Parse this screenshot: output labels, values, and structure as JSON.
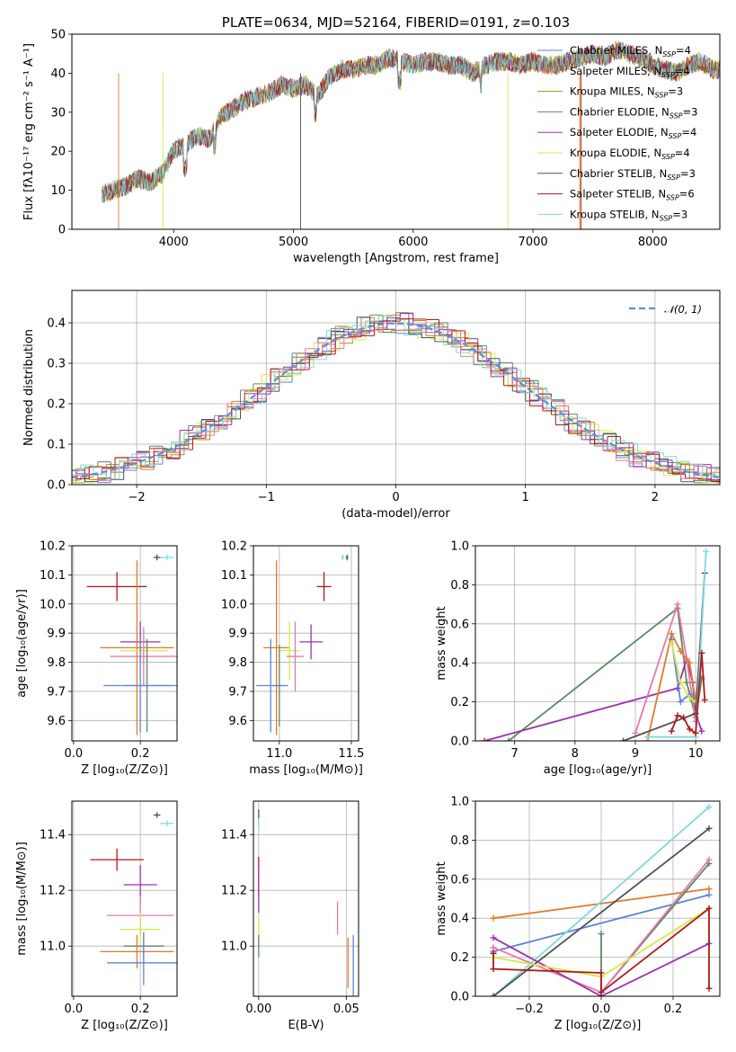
{
  "colors": {
    "cm": "#5b84d8",
    "sm": "#e07a2a",
    "km": "#b08a1a",
    "ce": "#5a8a60",
    "se": "#9b30b0",
    "ke": "#d4e84a",
    "cs": "#505050",
    "ss": "#b01818",
    "ks": "#7fd8e0",
    "pink": "#e878a8",
    "dash": "#5b8fd8"
  },
  "chart_data": [
    {
      "type": "line",
      "id": "spectrum",
      "title": "PLATE=0634, MJD=52164, FIBERID=0191, z=0.103",
      "xlabel": "wavelength [Angstrom, rest frame]",
      "ylabel": "Flux [fλ10⁻¹⁷ erg cm⁻² s⁻¹ A⁻¹]",
      "xlim": [
        3150,
        8560
      ],
      "ylim": [
        0,
        50
      ],
      "xticks": [
        "4000",
        "5000",
        "6000",
        "7000",
        "8000"
      ],
      "yticks": [
        "0",
        "10",
        "20",
        "30",
        "40",
        "50"
      ],
      "legend_position": "upper right",
      "legend": [
        {
          "label": "Chabrier MILES, N",
          "sub": "SSP",
          "suffix": "=4",
          "color": "#5b84d8"
        },
        {
          "label": "Salpeter MILES, N",
          "sub": "SSP",
          "suffix": "=4",
          "color": "#e07a2a"
        },
        {
          "label": "Kroupa MILES, N",
          "sub": "SSP",
          "suffix": "=3",
          "color": "#b08a1a"
        },
        {
          "label": "Chabrier ELODIE, N",
          "sub": "SSP",
          "suffix": "=3",
          "color": "#5a8a60"
        },
        {
          "label": "Salpeter ELODIE, N",
          "sub": "SSP",
          "suffix": "=4",
          "color": "#9b30b0"
        },
        {
          "label": "Kroupa ELODIE, N",
          "sub": "SSP",
          "suffix": "=4",
          "color": "#d4e84a"
        },
        {
          "label": "Chabrier STELIB, N",
          "sub": "SSP",
          "suffix": "=3",
          "color": "#505050"
        },
        {
          "label": "Salpeter STELIB, N",
          "sub": "SSP",
          "suffix": "=6",
          "color": "#b01818"
        },
        {
          "label": "Kroupa STELIB, N",
          "sub": "SSP",
          "suffix": "=3",
          "color": "#7fd8e0"
        }
      ],
      "continuum": [
        [
          3400,
          9
        ],
        [
          3500,
          10
        ],
        [
          3600,
          11
        ],
        [
          3700,
          13
        ],
        [
          3800,
          12
        ],
        [
          3900,
          14
        ],
        [
          3950,
          17
        ],
        [
          4000,
          20
        ],
        [
          4100,
          22
        ],
        [
          4200,
          24
        ],
        [
          4300,
          23
        ],
        [
          4400,
          29
        ],
        [
          4500,
          31
        ],
        [
          4600,
          33
        ],
        [
          4700,
          34
        ],
        [
          4800,
          35
        ],
        [
          4900,
          37
        ],
        [
          5000,
          36
        ],
        [
          5100,
          37
        ],
        [
          5200,
          34
        ],
        [
          5300,
          39
        ],
        [
          5400,
          41
        ],
        [
          5500,
          41
        ],
        [
          5600,
          42
        ],
        [
          5700,
          42
        ],
        [
          5800,
          44
        ],
        [
          5900,
          43
        ],
        [
          6000,
          42
        ],
        [
          6100,
          43
        ],
        [
          6200,
          43
        ],
        [
          6300,
          42
        ],
        [
          6400,
          42
        ],
        [
          6500,
          40
        ],
        [
          6600,
          42
        ],
        [
          6700,
          43
        ],
        [
          6800,
          43
        ],
        [
          6900,
          42
        ],
        [
          7000,
          43
        ],
        [
          7100,
          42
        ],
        [
          7200,
          42
        ],
        [
          7300,
          43
        ],
        [
          7400,
          44
        ],
        [
          7500,
          45
        ],
        [
          7600,
          44
        ],
        [
          7700,
          46
        ],
        [
          7800,
          45
        ],
        [
          7900,
          44
        ],
        [
          8000,
          42
        ],
        [
          8100,
          41
        ],
        [
          8200,
          40
        ],
        [
          8300,
          42
        ],
        [
          8400,
          43
        ],
        [
          8500,
          41
        ]
      ]
    },
    {
      "type": "line",
      "id": "residuals",
      "xlabel": "(data-model)/error",
      "ylabel": "Normed distribution",
      "xlim": [
        -2.5,
        2.5
      ],
      "ylim": [
        0,
        0.48
      ],
      "xticks": [
        "−2",
        "−1",
        "0",
        "1",
        "2"
      ],
      "yticks": [
        "0.0",
        "0.1",
        "0.2",
        "0.3",
        "0.4"
      ],
      "grid": true,
      "legend": [
        {
          "label": "𝒩(0, 1)",
          "color": "#5b8fd8",
          "style": "dashed"
        }
      ],
      "legend_position": "upper right",
      "series_colors": [
        "#5b84d8",
        "#e07a2a",
        "#b08a1a",
        "#5a8a60",
        "#9b30b0",
        "#d4e84a",
        "#505050",
        "#b01818",
        "#7fd8e0",
        "#e878a8"
      ]
    },
    {
      "type": "scatter",
      "id": "age-vs-z",
      "xlabel": "Z [log₁₀(Z/Z⊙)]",
      "ylabel": "age  [log₁₀(age/yr)]",
      "xlim": [
        -0.005,
        0.31
      ],
      "ylim": [
        9.53,
        10.2
      ],
      "xticks": [
        "0.0",
        "0.2"
      ],
      "yticks": [
        "9.6",
        "9.7",
        "9.8",
        "9.9",
        "10.0",
        "10.1",
        "10.2"
      ],
      "points": [
        {
          "x": 0.13,
          "y": 10.06,
          "xerr": 0.09,
          "yerr": 0.05,
          "color": "#b01818"
        },
        {
          "x": 0.25,
          "y": 10.16,
          "xerr": 0.01,
          "yerr": 0.01,
          "color": "#505050"
        },
        {
          "x": 0.28,
          "y": 10.16,
          "xerr": 0.02,
          "yerr": 0.01,
          "color": "#7fd8e0"
        },
        {
          "x": 0.2,
          "y": 9.87,
          "xerr": 0.06,
          "yerr": 0.07,
          "color": "#9b30b0"
        },
        {
          "x": 0.19,
          "y": 9.85,
          "xerr": 0.11,
          "yerr": 0.3,
          "color": "#e07a2a"
        },
        {
          "x": 0.21,
          "y": 9.84,
          "xerr": 0.07,
          "yerr": 0.05,
          "color": "#d4e84a"
        },
        {
          "x": 0.21,
          "y": 9.82,
          "xerr": 0.1,
          "yerr": 0.1,
          "color": "#e878a8"
        },
        {
          "x": 0.22,
          "y": 9.72,
          "xerr": 0.07,
          "yerr": 0.16,
          "color": "#5a8a60"
        },
        {
          "x": 0.2,
          "y": 9.72,
          "xerr": 0.11,
          "yerr": 0.16,
          "color": "#5b84d8"
        }
      ]
    },
    {
      "type": "scatter",
      "id": "age-vs-mass",
      "xlabel": "mass [log₁₀(M/M⊙)]",
      "xlim": [
        10.82,
        11.55
      ],
      "ylim": [
        9.53,
        10.2
      ],
      "xticks": [
        "11.0",
        "11.5"
      ],
      "yticks": [
        "9.6",
        "9.7",
        "9.8",
        "9.9",
        "10.0",
        "10.1",
        "10.2"
      ],
      "points": [
        {
          "x": 11.31,
          "y": 10.06,
          "xerr": 0.05,
          "yerr": 0.05,
          "color": "#b01818"
        },
        {
          "x": 11.47,
          "y": 10.16,
          "xerr": 0.01,
          "yerr": 0.01,
          "color": "#505050"
        },
        {
          "x": 11.44,
          "y": 10.16,
          "xerr": 0.01,
          "yerr": 0.01,
          "color": "#7fd8e0"
        },
        {
          "x": 11.22,
          "y": 9.87,
          "xerr": 0.08,
          "yerr": 0.06,
          "color": "#9b30b0"
        },
        {
          "x": 10.98,
          "y": 9.85,
          "xerr": 0.09,
          "yerr": 0.3,
          "color": "#e07a2a"
        },
        {
          "x": 11.07,
          "y": 9.84,
          "xerr": 0.07,
          "yerr": 0.1,
          "color": "#d4e84a"
        },
        {
          "x": 11.11,
          "y": 9.82,
          "xerr": 0.06,
          "yerr": 0.12,
          "color": "#e878a8"
        },
        {
          "x": 11.0,
          "y": 9.72,
          "xerr": 0.06,
          "yerr": 0.14,
          "color": "#5a8a60"
        },
        {
          "x": 10.94,
          "y": 9.72,
          "xerr": 0.1,
          "yerr": 0.16,
          "color": "#5b84d8"
        }
      ]
    },
    {
      "type": "line",
      "id": "massweight-vs-age",
      "xlabel": "age  [log₁₀(age/yr)]",
      "ylabel": "mass weight",
      "xlim": [
        6.35,
        10.4
      ],
      "ylim": [
        0,
        1
      ],
      "xticks": [
        "7",
        "8",
        "9",
        "10"
      ],
      "yticks": [
        "0.0",
        "0.2",
        "0.4",
        "0.6",
        "0.8",
        "1.0"
      ],
      "grid": true,
      "series": [
        {
          "color": "#5a8a60",
          "points": [
            [
              6.9,
              0
            ],
            [
              9.7,
              0.68
            ],
            [
              9.85,
              0.3
            ],
            [
              10.0,
              0.12
            ],
            [
              10.1,
              0.32
            ]
          ]
        },
        {
          "color": "#9b30b0",
          "points": [
            [
              6.5,
              0
            ],
            [
              9.7,
              0.27
            ],
            [
              9.85,
              0.42
            ],
            [
              9.95,
              0.3
            ],
            [
              10.0,
              0.14
            ],
            [
              10.1,
              0.05
            ]
          ]
        },
        {
          "color": "#e878a8",
          "points": [
            [
              9.0,
              0.04
            ],
            [
              9.7,
              0.7
            ],
            [
              9.85,
              0.42
            ],
            [
              10.0,
              0.1
            ]
          ]
        },
        {
          "color": "#e07a2a",
          "points": [
            [
              9.2,
              0
            ],
            [
              9.6,
              0.55
            ],
            [
              9.75,
              0.46
            ],
            [
              9.9,
              0.4
            ],
            [
              10.0,
              0.2
            ]
          ]
        },
        {
          "color": "#5b84d8",
          "points": [
            [
              9.6,
              0.52
            ],
            [
              9.75,
              0.2
            ],
            [
              9.9,
              0.24
            ],
            [
              10.0,
              0.2
            ]
          ]
        },
        {
          "color": "#d4e84a",
          "points": [
            [
              9.6,
              0.5
            ],
            [
              9.75,
              0.3
            ],
            [
              9.9,
              0.22
            ],
            [
              10.0,
              0.2
            ]
          ]
        },
        {
          "color": "#505050",
          "points": [
            [
              8.8,
              0
            ],
            [
              10.0,
              0.14
            ],
            [
              10.15,
              0.86
            ]
          ]
        },
        {
          "color": "#7fd8e0",
          "points": [
            [
              9.2,
              0.02
            ],
            [
              10.0,
              0.02
            ],
            [
              10.17,
              0.97
            ]
          ]
        },
        {
          "color": "#b01818",
          "points": [
            [
              9.6,
              0.05
            ],
            [
              9.7,
              0.13
            ],
            [
              9.8,
              0.12
            ],
            [
              9.9,
              0.06
            ],
            [
              10.0,
              0.04
            ],
            [
              10.1,
              0.45
            ],
            [
              10.15,
              0.21
            ]
          ]
        }
      ]
    },
    {
      "type": "scatter",
      "id": "mass-vs-z",
      "xlabel": "Z [log₁₀(Z/Z⊙)]",
      "ylabel": "mass [log₁₀(M/M⊙)]",
      "xlim": [
        -0.005,
        0.31
      ],
      "ylim": [
        10.82,
        11.52
      ],
      "xticks": [
        "0.0",
        "0.2"
      ],
      "yticks": [
        "11.0",
        "11.2",
        "11.4"
      ],
      "points": [
        {
          "x": 0.13,
          "y": 11.31,
          "xerr": 0.08,
          "yerr": 0.04,
          "color": "#b01818"
        },
        {
          "x": 0.25,
          "y": 11.47,
          "xerr": 0.01,
          "yerr": 0.01,
          "color": "#505050"
        },
        {
          "x": 0.28,
          "y": 11.44,
          "xerr": 0.02,
          "yerr": 0.01,
          "color": "#7fd8e0"
        },
        {
          "x": 0.2,
          "y": 11.22,
          "xerr": 0.05,
          "yerr": 0.07,
          "color": "#9b30b0"
        },
        {
          "x": 0.2,
          "y": 11.11,
          "xerr": 0.1,
          "yerr": 0.07,
          "color": "#e878a8"
        },
        {
          "x": 0.2,
          "y": 11.06,
          "xerr": 0.06,
          "yerr": 0.06,
          "color": "#d4e84a"
        },
        {
          "x": 0.21,
          "y": 11.0,
          "xerr": 0.06,
          "yerr": 0.05,
          "color": "#5a8a60"
        },
        {
          "x": 0.19,
          "y": 10.98,
          "xerr": 0.11,
          "yerr": 0.06,
          "color": "#e07a2a"
        },
        {
          "x": 0.21,
          "y": 10.94,
          "xerr": 0.11,
          "yerr": 0.08,
          "color": "#5b84d8"
        }
      ]
    },
    {
      "type": "scatter",
      "id": "mass-vs-ebv",
      "xlabel": "E(B-V)",
      "xlim": [
        -0.003,
        0.057
      ],
      "ylim": [
        10.82,
        11.52
      ],
      "xticks": [
        "0.00",
        "0.05"
      ],
      "yticks": [
        "11.0",
        "11.2",
        "11.4"
      ],
      "points": [
        {
          "x": 0.0,
          "y": 11.47,
          "xerr": 0,
          "yerr": 0.02,
          "color": "#505050"
        },
        {
          "x": 0.0,
          "y": 11.44,
          "xerr": 0,
          "yerr": 0.02,
          "color": "#7fd8e0"
        },
        {
          "x": 0.0,
          "y": 11.25,
          "xerr": 0,
          "yerr": 0.07,
          "color": "#b01818"
        },
        {
          "x": 0.0,
          "y": 11.2,
          "xerr": 0,
          "yerr": 0.08,
          "color": "#9b30b0"
        },
        {
          "x": 0.0,
          "y": 11.05,
          "xerr": 0,
          "yerr": 0.05,
          "color": "#d4e84a"
        },
        {
          "x": 0.0,
          "y": 11.0,
          "xerr": 0,
          "yerr": 0.04,
          "color": "#5a8a60"
        },
        {
          "x": 0.045,
          "y": 11.1,
          "xerr": 0,
          "yerr": 0.06,
          "color": "#e878a8"
        },
        {
          "x": 0.051,
          "y": 10.94,
          "xerr": 0,
          "yerr": 0.09,
          "color": "#e07a2a"
        },
        {
          "x": 0.054,
          "y": 10.93,
          "xerr": 0,
          "yerr": 0.11,
          "color": "#5b84d8"
        }
      ]
    },
    {
      "type": "line",
      "id": "massweight-vs-z",
      "xlabel": "Z [log₁₀(Z/Z⊙)]",
      "ylabel": "mass weight",
      "xlim": [
        -0.35,
        0.33
      ],
      "ylim": [
        0,
        1
      ],
      "xticks": [
        "−0.2",
        "0.0",
        "0.2"
      ],
      "yticks": [
        "0.0",
        "0.2",
        "0.4",
        "0.6",
        "0.8",
        "1.0"
      ],
      "grid": true,
      "series": [
        {
          "color": "#e07a2a",
          "points": [
            [
              -0.3,
              0.4
            ],
            [
              0.3,
              0.55
            ]
          ]
        },
        {
          "color": "#5b84d8",
          "points": [
            [
              -0.3,
              0.23
            ],
            [
              0.3,
              0.52
            ]
          ]
        },
        {
          "color": "#7fd8e0",
          "points": [
            [
              -0.3,
              0.0
            ],
            [
              0.3,
              0.97
            ]
          ]
        },
        {
          "color": "#505050",
          "points": [
            [
              -0.3,
              0.0
            ],
            [
              0.3,
              0.86
            ]
          ]
        },
        {
          "color": "#5a8a60",
          "points": [
            [
              0.0,
              0.32
            ],
            [
              0.0,
              0.02
            ],
            [
              0.3,
              0.68
            ]
          ]
        },
        {
          "color": "#e878a8",
          "points": [
            [
              -0.3,
              0.25
            ],
            [
              0.0,
              0.02
            ],
            [
              0.3,
              0.7
            ]
          ]
        },
        {
          "color": "#9b30b0",
          "points": [
            [
              -0.3,
              0.3
            ],
            [
              0.0,
              0.0
            ],
            [
              0.3,
              0.27
            ]
          ]
        },
        {
          "color": "#d4e84a",
          "points": [
            [
              -0.3,
              0.2
            ],
            [
              0.0,
              0.1
            ],
            [
              0.3,
              0.45
            ]
          ]
        },
        {
          "color": "#b01818",
          "points": [
            [
              -0.3,
              0.22
            ],
            [
              -0.3,
              0.14
            ],
            [
              0.0,
              0.12
            ],
            [
              0.0,
              0.02
            ],
            [
              0.3,
              0.45
            ],
            [
              0.3,
              0.04
            ]
          ]
        }
      ]
    }
  ]
}
